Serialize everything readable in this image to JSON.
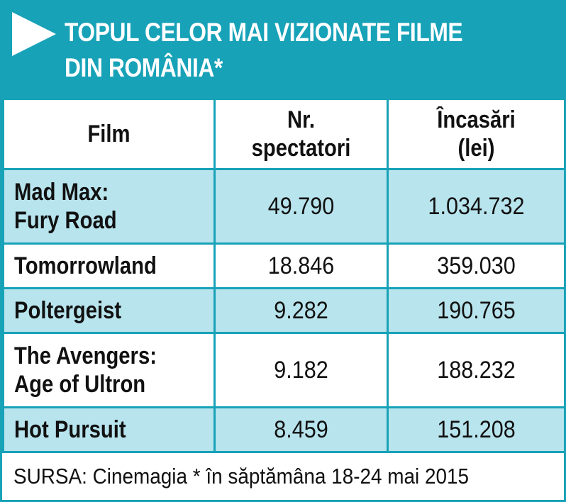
{
  "header": {
    "title": [
      "TOPUL CELOR MAI VIZIONATE FILME",
      "DIN ROMÂNIA*"
    ]
  },
  "table": {
    "columns": [
      [
        "Film"
      ],
      [
        "Nr.",
        "spectatori"
      ],
      [
        "Încasări",
        "(lei)"
      ]
    ],
    "rows": [
      [
        [
          "Mad Max:",
          "Fury Road"
        ],
        "49.790",
        "1.034.732"
      ],
      [
        [
          "Tomorrowland"
        ],
        "18.846",
        "359.030"
      ],
      [
        [
          "Poltergeist"
        ],
        "9.282",
        "190.765"
      ],
      [
        [
          "The Avengers:",
          "Age of Ultron"
        ],
        "9.182",
        "188.232"
      ],
      [
        [
          "Hot Pursuit"
        ],
        "8.459",
        "151.208"
      ]
    ]
  },
  "footer": {
    "source": "SURSA: Cinemagia * în săptămâna 18-24 mai 2015"
  }
}
